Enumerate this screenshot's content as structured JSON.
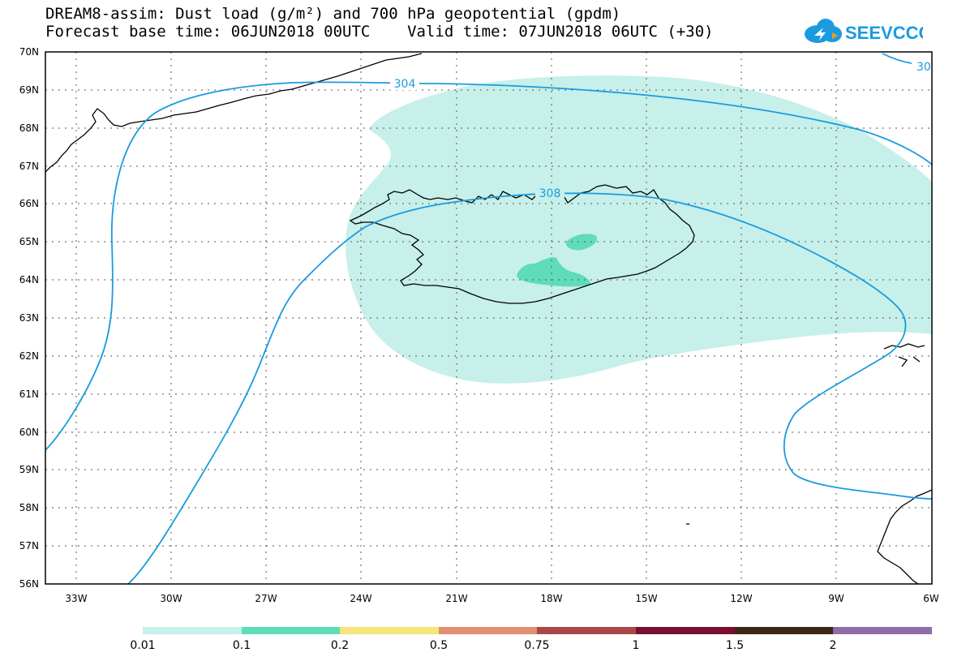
{
  "header": {
    "line1": "DREAM8-assim: Dust load (g/m²) and 700 hPa geopotential (gpdm)",
    "line2": "Forecast base time: 06JUN2018 00UTC    Valid time: 07JUN2018 06UTC (+30)"
  },
  "logo": {
    "text": "SEEVCCC",
    "icon": "cloud-logo-icon",
    "color": "#1a9be0",
    "accent": "#f39c12"
  },
  "map": {
    "lat_range": [
      56,
      70
    ],
    "lon_range": [
      -34.5,
      -6
    ],
    "lat_labels": [
      "70N",
      "69N",
      "68N",
      "67N",
      "66N",
      "65N",
      "64N",
      "63N",
      "62N",
      "61N",
      "60N",
      "59N",
      "58N",
      "57N",
      "56N"
    ],
    "lon_labels": [
      "33W",
      "30W",
      "27W",
      "24W",
      "21W",
      "18W",
      "15W",
      "12W",
      "9W",
      "6W"
    ],
    "contour_labels": [
      "304",
      "308",
      "30"
    ],
    "contour_color": "#1a9be0"
  },
  "colorbar": {
    "colors": [
      "#c6f0e9",
      "#5fdcb8",
      "#f5e57a",
      "#e09070",
      "#a84848",
      "#7a1030",
      "#3c2816",
      "#8e6ea8"
    ],
    "labels": [
      "0.01",
      "0.1",
      "0.2",
      "0.5",
      "0.75",
      "1",
      "1.5",
      "2"
    ]
  }
}
